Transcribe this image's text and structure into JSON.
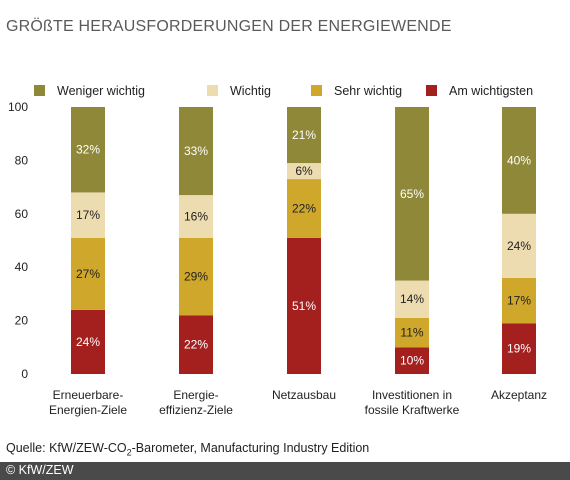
{
  "title": "GRÖßTE HERAUSFORDERUNGEN DER ENERGIEWENDE",
  "source": {
    "prefix": "Quelle: KfW/ZEW-CO",
    "sub": "2",
    "suffix": "-Barometer, Manufacturing Industry Edition"
  },
  "copyright": "© KfW/ZEW",
  "chart_data": {
    "type": "bar",
    "stacked": true,
    "categories": [
      [
        "Erneuerbare-",
        "Energien-Ziele"
      ],
      [
        "Energie-",
        "effizienz-Ziele"
      ],
      [
        "Netzausbau"
      ],
      [
        "Investitionen in",
        "fossile Kraftwerke"
      ],
      [
        "Akzeptanz"
      ]
    ],
    "series": [
      {
        "name": "Am wichtigsten",
        "color": "#a3201f",
        "label_color": "#ffffff",
        "values": [
          24,
          22,
          51,
          10,
          19
        ]
      },
      {
        "name": "Sehr wichtig",
        "color": "#cfa72b",
        "label_color": "#222222",
        "values": [
          27,
          29,
          22,
          11,
          17
        ]
      },
      {
        "name": "Wichtig",
        "color": "#eddcb0",
        "label_color": "#222222",
        "values": [
          17,
          16,
          6,
          14,
          24
        ]
      },
      {
        "name": "Weniger wichtig",
        "color": "#8e8838",
        "label_color": "#ffffff",
        "values": [
          32,
          33,
          21,
          65,
          40
        ]
      }
    ],
    "value_suffix": "%",
    "legend_order": [
      "Weniger wichtig",
      "Wichtig",
      "Sehr wichtig",
      "Am wichtigsten"
    ],
    "legend_position": "top",
    "ylim": [
      0,
      100
    ],
    "yticks": [
      0,
      20,
      40,
      60,
      80,
      100
    ],
    "grid": false
  }
}
